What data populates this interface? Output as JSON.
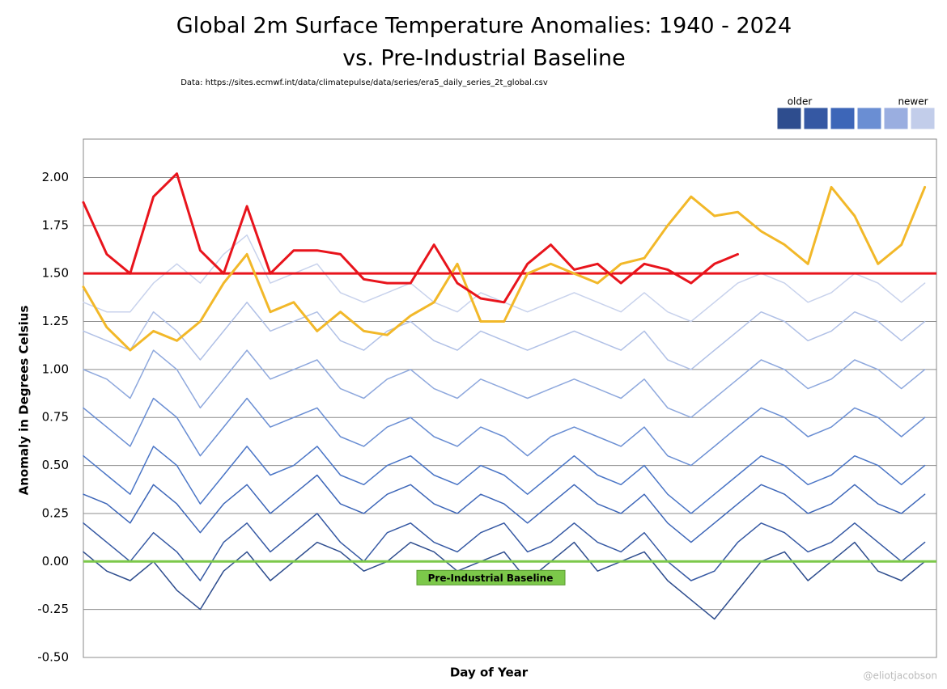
{
  "chart_data": {
    "type": "line",
    "title": "Global 2m Surface Temperature Anomalies: 1940 - 2024",
    "subtitle": "vs. Pre-Industrial Baseline",
    "source": "Data: https://sites.ecmwf.int/data/climatepulse/data/series/era5_daily_series_2t_global.csv",
    "x_label": "Day of Year",
    "y_label": "Anomaly in Degrees Celsius",
    "watermark": "@eliotjacobson",
    "legend": {
      "labels": [
        "older",
        "newer"
      ],
      "colors": [
        "#2e4d8e",
        "#3558a3",
        "#3d66b8",
        "#6a8ed3",
        "#9aaee0",
        "#c2cdea"
      ]
    },
    "grid": true,
    "xlim": [
      1,
      366
    ],
    "ylim": [
      -0.5,
      2.2
    ],
    "yticks": [
      {
        "value": -0.5,
        "label": "-0.50"
      },
      {
        "value": -0.25,
        "label": "-0.25"
      },
      {
        "value": 0,
        "label": "0.00"
      },
      {
        "value": 0.25,
        "label": "0.25"
      },
      {
        "value": 0.5,
        "label": "0.50"
      },
      {
        "value": 0.75,
        "label": "0.75"
      },
      {
        "value": 1,
        "label": "1.00"
      },
      {
        "value": 1.25,
        "label": "1.25"
      },
      {
        "value": 1.5,
        "label": "1.50"
      },
      {
        "value": 1.75,
        "label": "1.75"
      },
      {
        "value": 2,
        "label": "2.00"
      }
    ],
    "reference_lines": [
      {
        "value": 1.5,
        "color": "#e8141c"
      },
      {
        "value": 0,
        "color": "#7cc84a",
        "label": "Pre-Industrial Baseline"
      }
    ],
    "x": [
      1,
      11,
      21,
      31,
      41,
      51,
      61,
      71,
      81,
      91,
      101,
      111,
      121,
      131,
      141,
      151,
      161,
      171,
      181,
      191,
      201,
      211,
      221,
      231,
      241,
      251,
      261,
      271,
      281,
      291,
      301,
      311,
      321,
      331,
      341,
      351,
      361
    ],
    "series": [
      {
        "color": "#2e4d8e",
        "width": 1.5,
        "values": [
          0.05,
          -0.05,
          -0.1,
          0.0,
          -0.15,
          -0.25,
          -0.05,
          0.05,
          -0.1,
          0.0,
          0.1,
          0.05,
          -0.05,
          0.0,
          0.1,
          0.05,
          -0.05,
          0.0,
          0.05,
          -0.1,
          0.0,
          0.1,
          -0.05,
          0.0,
          0.05,
          -0.1,
          -0.2,
          -0.3,
          -0.15,
          0.0,
          0.05,
          -0.1,
          0.0,
          0.1,
          -0.05,
          -0.1,
          0.0
        ]
      },
      {
        "color": "#3558a3",
        "width": 1.5,
        "values": [
          0.2,
          0.1,
          0.0,
          0.15,
          0.05,
          -0.1,
          0.1,
          0.2,
          0.05,
          0.15,
          0.25,
          0.1,
          0.0,
          0.15,
          0.2,
          0.1,
          0.05,
          0.15,
          0.2,
          0.05,
          0.1,
          0.2,
          0.1,
          0.05,
          0.15,
          0.0,
          -0.1,
          -0.05,
          0.1,
          0.2,
          0.15,
          0.05,
          0.1,
          0.2,
          0.1,
          0.0,
          0.1
        ]
      },
      {
        "color": "#3d66b8",
        "width": 1.5,
        "values": [
          0.35,
          0.3,
          0.2,
          0.4,
          0.3,
          0.15,
          0.3,
          0.4,
          0.25,
          0.35,
          0.45,
          0.3,
          0.25,
          0.35,
          0.4,
          0.3,
          0.25,
          0.35,
          0.3,
          0.2,
          0.3,
          0.4,
          0.3,
          0.25,
          0.35,
          0.2,
          0.1,
          0.2,
          0.3,
          0.4,
          0.35,
          0.25,
          0.3,
          0.4,
          0.3,
          0.25,
          0.35
        ]
      },
      {
        "color": "#4a75c6",
        "width": 1.5,
        "values": [
          0.55,
          0.45,
          0.35,
          0.6,
          0.5,
          0.3,
          0.45,
          0.6,
          0.45,
          0.5,
          0.6,
          0.45,
          0.4,
          0.5,
          0.55,
          0.45,
          0.4,
          0.5,
          0.45,
          0.35,
          0.45,
          0.55,
          0.45,
          0.4,
          0.5,
          0.35,
          0.25,
          0.35,
          0.45,
          0.55,
          0.5,
          0.4,
          0.45,
          0.55,
          0.5,
          0.4,
          0.5
        ]
      },
      {
        "color": "#6a8ed3",
        "width": 1.5,
        "values": [
          0.8,
          0.7,
          0.6,
          0.85,
          0.75,
          0.55,
          0.7,
          0.85,
          0.7,
          0.75,
          0.8,
          0.65,
          0.6,
          0.7,
          0.75,
          0.65,
          0.6,
          0.7,
          0.65,
          0.55,
          0.65,
          0.7,
          0.65,
          0.6,
          0.7,
          0.55,
          0.5,
          0.6,
          0.7,
          0.8,
          0.75,
          0.65,
          0.7,
          0.8,
          0.75,
          0.65,
          0.75
        ]
      },
      {
        "color": "#8ea8dd",
        "width": 1.5,
        "values": [
          1.0,
          0.95,
          0.85,
          1.1,
          1.0,
          0.8,
          0.95,
          1.1,
          0.95,
          1.0,
          1.05,
          0.9,
          0.85,
          0.95,
          1.0,
          0.9,
          0.85,
          0.95,
          0.9,
          0.85,
          0.9,
          0.95,
          0.9,
          0.85,
          0.95,
          0.8,
          0.75,
          0.85,
          0.95,
          1.05,
          1.0,
          0.9,
          0.95,
          1.05,
          1.0,
          0.9,
          1.0
        ]
      },
      {
        "color": "#b0c0e6",
        "width": 1.5,
        "values": [
          1.2,
          1.15,
          1.1,
          1.3,
          1.2,
          1.05,
          1.2,
          1.35,
          1.2,
          1.25,
          1.3,
          1.15,
          1.1,
          1.2,
          1.25,
          1.15,
          1.1,
          1.2,
          1.15,
          1.1,
          1.15,
          1.2,
          1.15,
          1.1,
          1.2,
          1.05,
          1.0,
          1.1,
          1.2,
          1.3,
          1.25,
          1.15,
          1.2,
          1.3,
          1.25,
          1.15,
          1.25
        ]
      },
      {
        "color": "#c8d2ec",
        "width": 1.5,
        "values": [
          1.35,
          1.3,
          1.3,
          1.45,
          1.55,
          1.45,
          1.6,
          1.7,
          1.45,
          1.5,
          1.55,
          1.4,
          1.35,
          1.4,
          1.45,
          1.35,
          1.3,
          1.4,
          1.35,
          1.3,
          1.35,
          1.4,
          1.35,
          1.3,
          1.4,
          1.3,
          1.25,
          1.35,
          1.45,
          1.5,
          1.45,
          1.35,
          1.4,
          1.5,
          1.45,
          1.35,
          1.45
        ]
      },
      {
        "color": "#f2b829",
        "width": 3,
        "values": [
          1.43,
          1.22,
          1.1,
          1.2,
          1.15,
          1.25,
          1.45,
          1.6,
          1.3,
          1.35,
          1.2,
          1.3,
          1.2,
          1.18,
          1.28,
          1.35,
          1.55,
          1.25,
          1.25,
          1.5,
          1.55,
          1.5,
          1.45,
          1.55,
          1.58,
          1.75,
          1.9,
          1.8,
          1.82,
          1.72,
          1.65,
          1.55,
          1.95,
          1.8,
          1.55,
          1.65,
          1.95
        ]
      },
      {
        "color": "#e8141c",
        "width": 3,
        "values": [
          1.87,
          1.6,
          1.5,
          1.9,
          2.02,
          1.62,
          1.5,
          1.85,
          1.5,
          1.62,
          1.62,
          1.6,
          1.47,
          1.45,
          1.45,
          1.65,
          1.45,
          1.37,
          1.35,
          1.55,
          1.65,
          1.52,
          1.55,
          1.45,
          1.55,
          1.52,
          1.45,
          1.55,
          1.6,
          null,
          null,
          null,
          null,
          null,
          null,
          null,
          null
        ]
      }
    ]
  }
}
